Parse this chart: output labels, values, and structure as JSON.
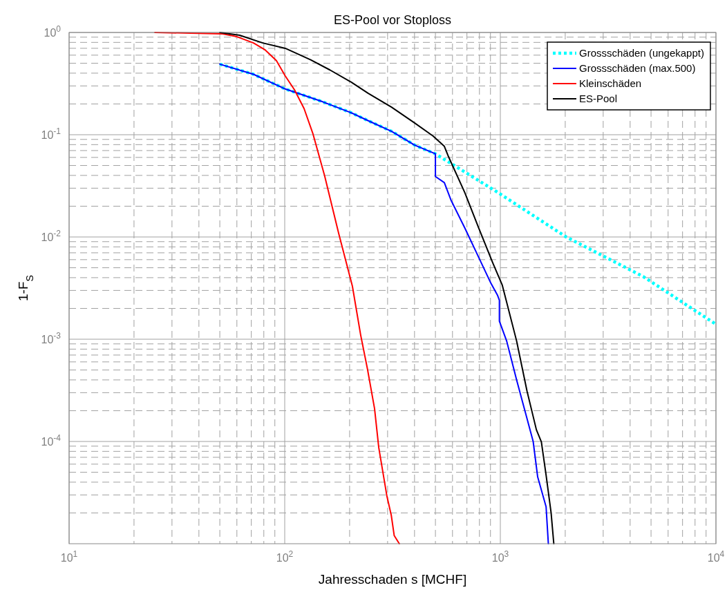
{
  "chart_data": {
    "type": "line",
    "title": "ES-Pool vor Stoploss",
    "xlabel": "Jahresschaden s [MCHF]",
    "ylabel": "1-F$_{S}$",
    "log": "xy",
    "grid": true,
    "legend": "top right",
    "xlim": [
      10,
      10000
    ],
    "ylim": [
      1e-05,
      1
    ],
    "xticks": [
      {
        "value": 10,
        "label": "10$^{1}$"
      },
      {
        "value": 100,
        "label": "10$^{2}$"
      },
      {
        "value": 1000,
        "label": "10$^{3}$"
      },
      {
        "value": 10000,
        "label": "10$^{4}$"
      }
    ],
    "yticks": [
      {
        "value": 0.0001,
        "label": "10$^{-4}$"
      },
      {
        "value": 0.001,
        "label": "10$^{-3}$"
      },
      {
        "value": 0.01,
        "label": "10$^{-2}$"
      },
      {
        "value": 0.1,
        "label": "10$^{-1}$"
      },
      {
        "value": 1,
        "label": "10$^{0}$"
      }
    ],
    "series": [
      {
        "name": "Grossschäden (ungekappt)",
        "color": "#00ffff",
        "line_style": "dotted",
        "x": [
          50,
          71.6,
          100.6,
          150,
          202,
          244,
          313,
          401,
          500,
          967,
          2020,
          4600,
          10000
        ],
        "values": [
          0.49,
          0.39,
          0.28,
          0.21,
          0.165,
          0.137,
          0.108,
          0.079,
          0.065,
          0.0275,
          0.01,
          0.0041,
          0.0014
        ]
      },
      {
        "name": "Grossschäden (max.500)",
        "color": "#0000ff",
        "line_style": "solid",
        "x": [
          50,
          71.6,
          100.6,
          150,
          202,
          244,
          313,
          401,
          500,
          500,
          550,
          590,
          685,
          794,
          900,
          970,
          990,
          990,
          1070,
          1190,
          1300,
          1420,
          1490,
          1630,
          1670
        ],
        "values": [
          0.49,
          0.39,
          0.28,
          0.21,
          0.165,
          0.137,
          0.108,
          0.079,
          0.065,
          0.039,
          0.034,
          0.023,
          0.0122,
          0.0063,
          0.0036,
          0.0027,
          0.0024,
          0.0015,
          0.00096,
          0.0004,
          0.0002,
          0.0001,
          4.5e-05,
          2.3e-05,
          1e-05
        ]
      },
      {
        "name": "Kleinschäden",
        "color": "#ff0000",
        "line_style": "solid",
        "x": [
          25,
          51.5,
          60,
          71.6,
          80.8,
          91.5,
          100.6,
          111,
          123,
          135,
          153,
          178,
          206,
          225,
          242,
          261,
          273,
          298,
          312,
          322,
          340
        ],
        "values": [
          1,
          0.97,
          0.91,
          0.79,
          0.68,
          0.53,
          0.375,
          0.275,
          0.18,
          0.103,
          0.04,
          0.0108,
          0.0033,
          0.0011,
          0.00051,
          0.00021,
          8.7e-05,
          2.9e-05,
          1.9e-05,
          1.2e-05,
          1e-05
        ]
      },
      {
        "name": "ES-Pool",
        "color": "#000000",
        "line_style": "solid",
        "x": [
          50,
          61.8,
          79,
          100.6,
          132,
          162,
          202,
          244,
          313,
          401,
          488,
          550,
          575,
          685,
          794,
          922,
          1020,
          1190,
          1330,
          1470,
          1550,
          1630,
          1720,
          1770
        ],
        "values": [
          1,
          0.94,
          0.79,
          0.7,
          0.54,
          0.43,
          0.33,
          0.254,
          0.186,
          0.13,
          0.097,
          0.077,
          0.061,
          0.027,
          0.0122,
          0.0056,
          0.0034,
          0.00096,
          0.00031,
          0.00013,
          9.9e-05,
          4.7e-05,
          2e-05,
          1e-05
        ]
      }
    ]
  }
}
